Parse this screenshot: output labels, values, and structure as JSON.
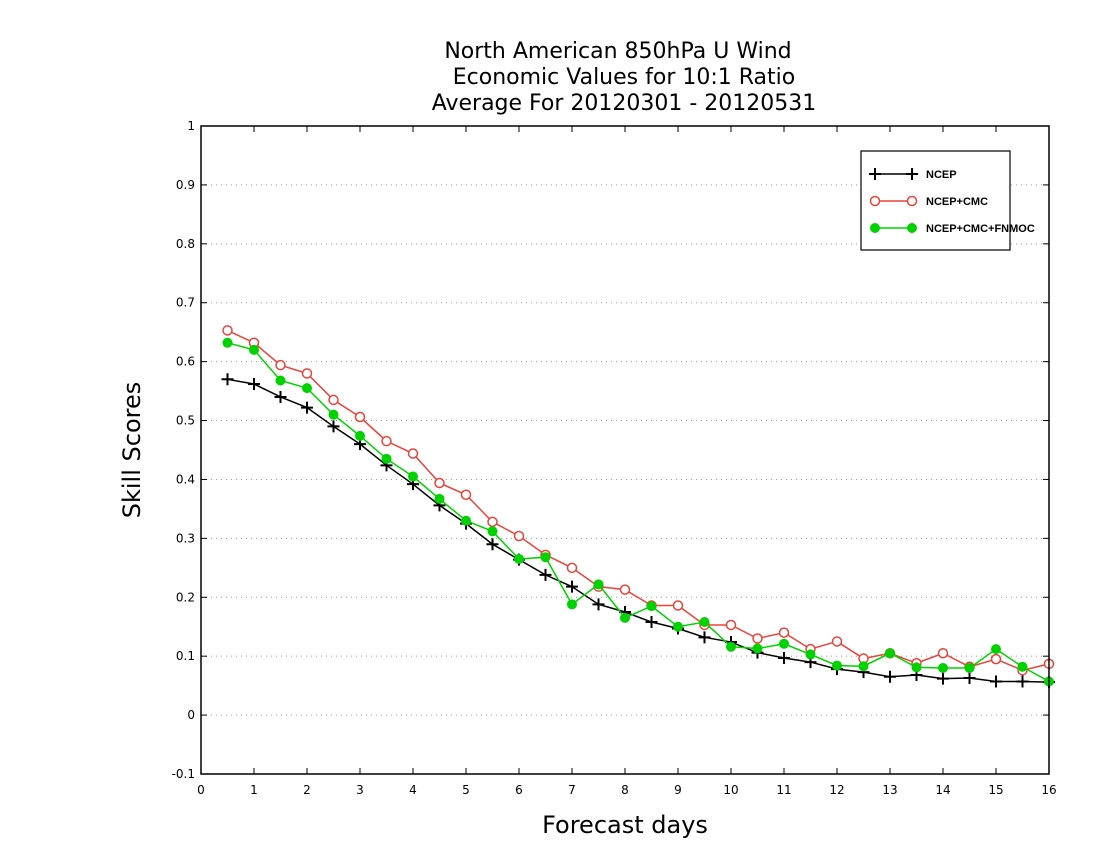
{
  "chart_data": {
    "type": "line",
    "title_lines": [
      "North American 850hPa U Wind",
      "Economic Values for 10:1 Ratio",
      "Average For 20120301 - 20120531"
    ],
    "xlabel": "Forecast days",
    "ylabel": "Skill Scores",
    "xlim": [
      0,
      16
    ],
    "ylim": [
      -0.1,
      1
    ],
    "xticks": [
      "0",
      "1",
      "2",
      "3",
      "4",
      "5",
      "6",
      "7",
      "8",
      "9",
      "10",
      "11",
      "12",
      "13",
      "14",
      "15",
      "16"
    ],
    "yticks": [
      "-0.1",
      "0",
      "0.1",
      "0.2",
      "0.3",
      "0.4",
      "0.5",
      "0.6",
      "0.7",
      "0.8",
      "0.9",
      "1"
    ],
    "grid": "horizontal dotted",
    "legend_position": "top-right",
    "x": [
      0.5,
      1,
      1.5,
      2,
      2.5,
      3,
      3.5,
      4,
      4.5,
      5,
      5.5,
      6,
      6.5,
      7,
      7.5,
      8,
      8.5,
      9,
      9.5,
      10,
      10.5,
      11,
      11.5,
      12,
      12.5,
      13,
      13.5,
      14,
      14.5,
      15,
      15.5,
      16
    ],
    "series": [
      {
        "name": "NCEP",
        "color": "#000000",
        "marker": "plus",
        "values": [
          0.57,
          0.562,
          0.54,
          0.522,
          0.49,
          0.46,
          0.424,
          0.392,
          0.356,
          0.325,
          0.29,
          0.264,
          0.238,
          0.218,
          0.188,
          0.175,
          0.158,
          0.147,
          0.132,
          0.124,
          0.106,
          0.097,
          0.09,
          0.078,
          0.073,
          0.065,
          0.068,
          0.062,
          0.063,
          0.057,
          0.057,
          0.056
        ]
      },
      {
        "name": "NCEP+CMC",
        "color": "#e8443a",
        "marker": "open-circle",
        "values": [
          0.653,
          0.632,
          0.594,
          0.58,
          0.535,
          0.506,
          0.465,
          0.444,
          0.394,
          0.374,
          0.328,
          0.304,
          0.272,
          0.25,
          0.218,
          0.213,
          0.186,
          0.186,
          0.153,
          0.153,
          0.13,
          0.14,
          0.112,
          0.125,
          0.096,
          0.105,
          0.088,
          0.105,
          0.082,
          0.095,
          0.076,
          0.087
        ]
      },
      {
        "name": "NCEP+CMC+FNMOC",
        "color": "#00d200",
        "marker": "filled-circle",
        "values": [
          0.632,
          0.62,
          0.568,
          0.555,
          0.51,
          0.474,
          0.435,
          0.405,
          0.367,
          0.33,
          0.312,
          0.265,
          0.268,
          0.188,
          0.222,
          0.165,
          0.185,
          0.15,
          0.158,
          0.116,
          0.113,
          0.121,
          0.103,
          0.084,
          0.083,
          0.105,
          0.081,
          0.08,
          0.08,
          0.112,
          0.082,
          0.057
        ]
      }
    ]
  }
}
